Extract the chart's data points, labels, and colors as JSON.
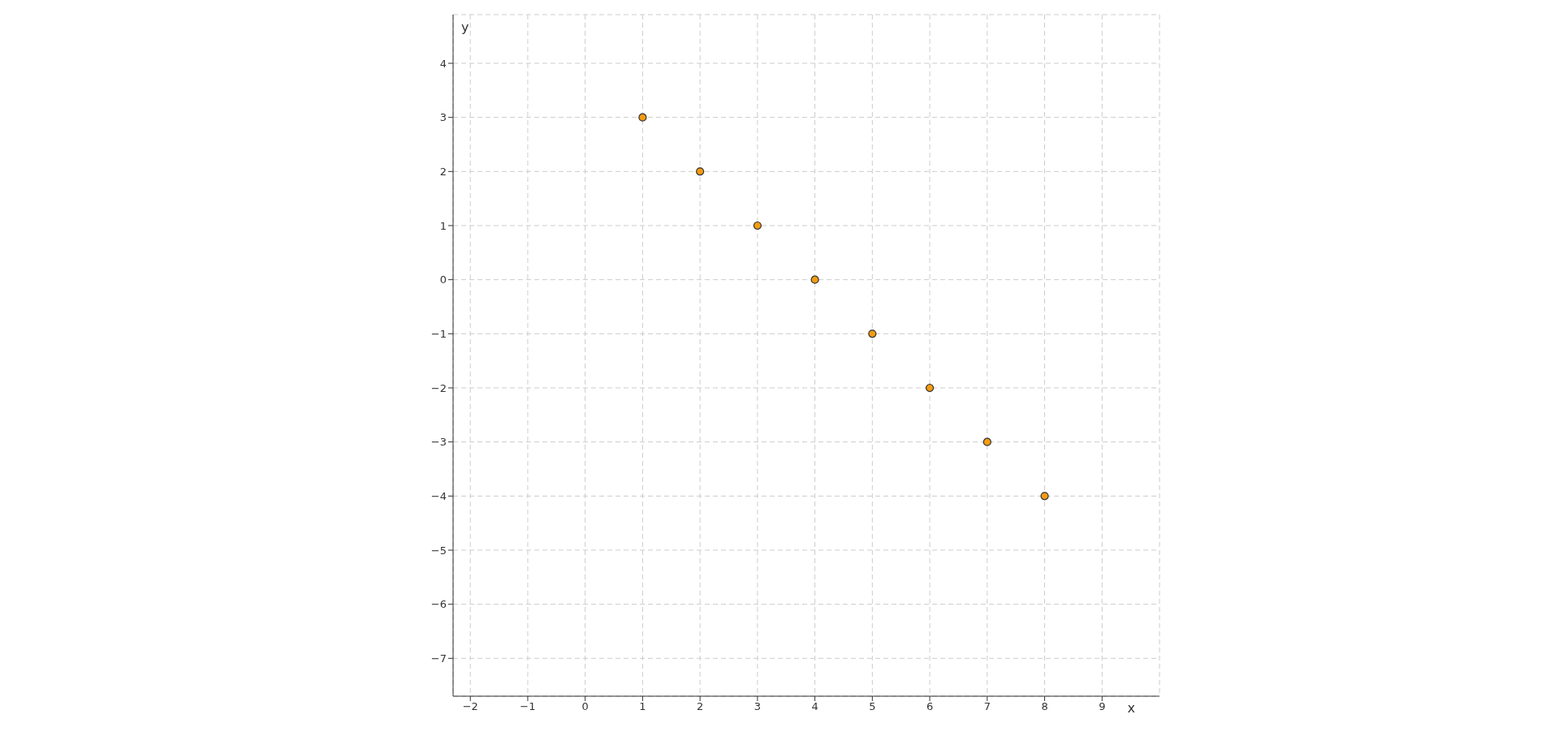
{
  "chart_data": {
    "type": "scatter",
    "xlabel": "x",
    "ylabel": "y",
    "x": [
      1,
      2,
      3,
      4,
      5,
      6,
      7,
      8
    ],
    "values": [
      3,
      2,
      1,
      0,
      -1,
      -2,
      -3,
      -4
    ],
    "color": "#f39c12",
    "marker": "circle",
    "grid": true,
    "xlim": [
      -2.3,
      10
    ],
    "ylim": [
      -7.7,
      4.9
    ],
    "xticks": [
      {
        "value": -2,
        "label": "−2"
      },
      {
        "value": -1,
        "label": "−1"
      },
      0,
      1,
      2,
      3,
      4,
      5,
      6,
      7,
      8,
      9
    ],
    "yticks": [
      {
        "value": -7,
        "label": "−7"
      },
      {
        "value": -6,
        "label": "−6"
      },
      {
        "value": -5,
        "label": "−5"
      },
      {
        "value": -4,
        "label": "−4"
      },
      {
        "value": -3,
        "label": "−3"
      },
      {
        "value": -2,
        "label": "−2"
      },
      {
        "value": -1,
        "label": "−1"
      },
      0,
      1,
      2,
      3,
      4
    ]
  }
}
